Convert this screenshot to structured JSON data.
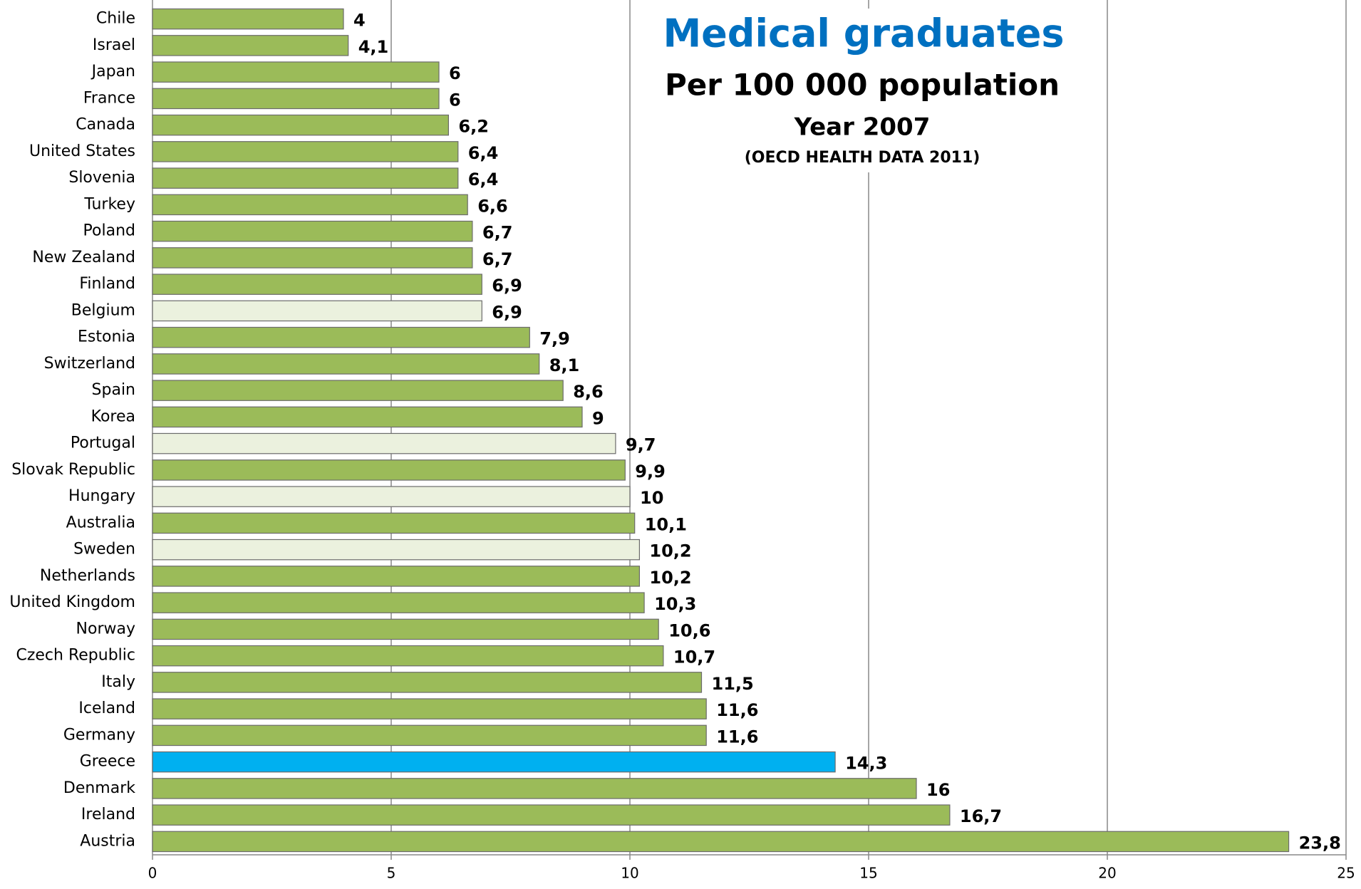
{
  "chart_data": {
    "type": "bar",
    "orientation": "horizontal",
    "title": "Medical graduates",
    "subtitle": "Per 100 000 population",
    "subtitle2": "Year 2007",
    "source": "(OECD HEALTH DATA 2011)",
    "categories": [
      "Chile",
      "Israel",
      "Japan",
      "France",
      "Canada",
      "United States",
      "Slovenia",
      "Turkey",
      "Poland",
      "New Zealand",
      "Finland",
      "Belgium",
      "Estonia",
      "Switzerland",
      "Spain",
      "Korea",
      "Portugal",
      "Slovak Republic",
      "Hungary",
      "Australia",
      "Sweden",
      "Netherlands",
      "United Kingdom",
      "Norway",
      "Czech Republic",
      "Italy",
      "Iceland",
      "Germany",
      "Greece",
      "Denmark",
      "Ireland",
      "Austria"
    ],
    "values": [
      4,
      4.1,
      6,
      6,
      6.2,
      6.4,
      6.4,
      6.6,
      6.7,
      6.7,
      6.9,
      6.9,
      7.9,
      8.1,
      8.6,
      9,
      9.7,
      9.9,
      10,
      10.1,
      10.2,
      10.2,
      10.3,
      10.6,
      10.7,
      11.5,
      11.6,
      11.6,
      14.3,
      16,
      16.7,
      23.8
    ],
    "value_labels": [
      "4",
      "4,1",
      "6",
      "6",
      "6,2",
      "6,4",
      "6,4",
      "6,6",
      "6,7",
      "6,7",
      "6,9",
      "6,9",
      "7,9",
      "8,1",
      "8,6",
      "9",
      "9,7",
      "9,9",
      "10",
      "10,1",
      "10,2",
      "10,2",
      "10,3",
      "10,6",
      "10,7",
      "11,5",
      "11,6",
      "11,6",
      "14,3",
      "16",
      "16,7",
      "23,8"
    ],
    "colors": [
      "#9bbb59",
      "#9bbb59",
      "#9bbb59",
      "#9bbb59",
      "#9bbb59",
      "#9bbb59",
      "#9bbb59",
      "#9bbb59",
      "#9bbb59",
      "#9bbb59",
      "#9bbb59",
      "#ebf1de",
      "#9bbb59",
      "#9bbb59",
      "#9bbb59",
      "#9bbb59",
      "#ebf1de",
      "#9bbb59",
      "#ebf1de",
      "#9bbb59",
      "#ebf1de",
      "#9bbb59",
      "#9bbb59",
      "#9bbb59",
      "#9bbb59",
      "#9bbb59",
      "#9bbb59",
      "#9bbb59",
      "#00b0f0",
      "#9bbb59",
      "#9bbb59",
      "#9bbb59"
    ],
    "xlim": [
      0,
      25
    ],
    "xticks": [
      0,
      5,
      10,
      15,
      20,
      25
    ],
    "grid": true
  }
}
